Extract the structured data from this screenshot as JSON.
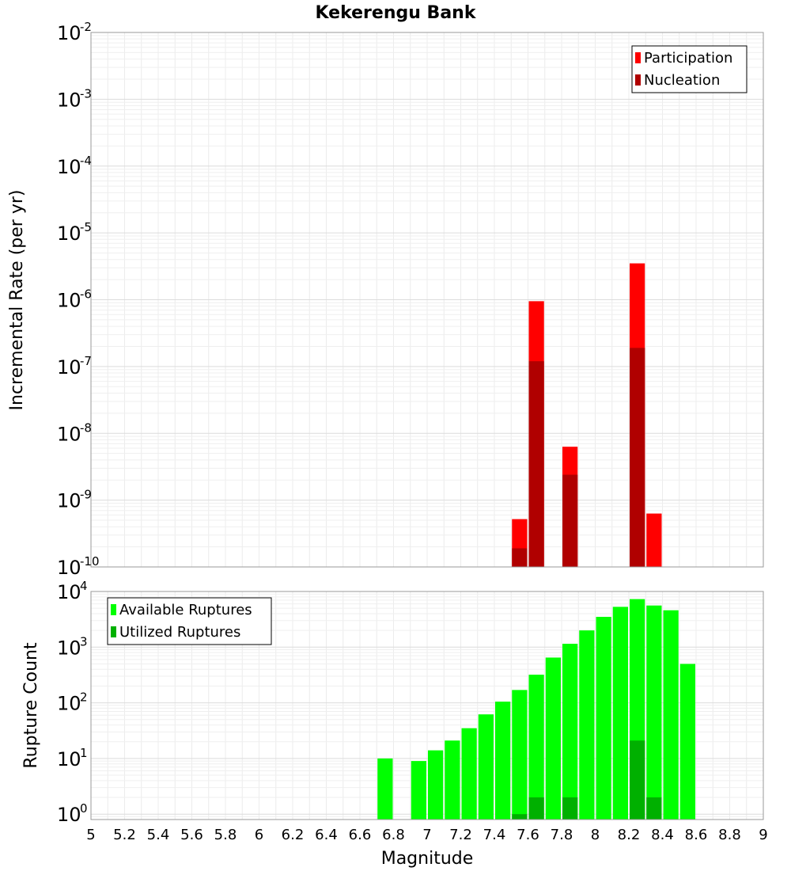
{
  "chart_data": [
    {
      "type": "bar",
      "title": "Kekerengu Bank",
      "ylabel": "Incremental Rate (per yr)",
      "xlabel": "",
      "xlim": [
        5,
        9
      ],
      "ylim": [
        1e-10,
        0.01
      ],
      "yscale": "log",
      "grid": true,
      "legend_position": "top-right",
      "x": [
        7.55,
        7.65,
        7.85,
        8.25,
        8.35
      ],
      "series": [
        {
          "name": "Participation",
          "color": "#ff0000",
          "values": [
            5.2e-10,
            9.5e-07,
            6.3e-09,
            3.5e-06,
            6.3e-10
          ]
        },
        {
          "name": "Nucleation",
          "color": "#b00000",
          "values": [
            1.9e-10,
            1.2e-07,
            2.4e-09,
            1.9e-07,
            null
          ]
        }
      ],
      "ytick_exponents": [
        -10,
        -9,
        -8,
        -7,
        -6,
        -5,
        -4,
        -3,
        -2
      ]
    },
    {
      "type": "bar",
      "title": "",
      "ylabel": "Rupture Count",
      "xlabel": "Magnitude",
      "xlim": [
        5,
        9
      ],
      "ylim": [
        0.8,
        10000
      ],
      "yscale": "log",
      "grid": true,
      "legend_position": "top-left",
      "x": [
        6.75,
        6.95,
        7.05,
        7.15,
        7.25,
        7.35,
        7.45,
        7.55,
        7.65,
        7.75,
        7.85,
        7.95,
        8.05,
        8.15,
        8.25,
        8.35,
        8.45,
        8.55
      ],
      "series": [
        {
          "name": "Available Ruptures",
          "color": "#00ff00",
          "values": [
            10,
            9,
            14,
            21,
            35,
            62,
            105,
            170,
            320,
            650,
            1150,
            2000,
            3500,
            5300,
            7300,
            5600,
            4600,
            500
          ]
        },
        {
          "name": "Utilized Ruptures",
          "color": "#00b000",
          "values": [
            null,
            null,
            null,
            null,
            null,
            null,
            null,
            1,
            2,
            null,
            2,
            null,
            null,
            null,
            21,
            2,
            null,
            null
          ]
        }
      ],
      "ytick_exponents": [
        0,
        1,
        2,
        3,
        4
      ]
    }
  ],
  "x_ticks": [
    "5",
    "5.2",
    "5.4",
    "5.6",
    "5.8",
    "6",
    "6.2",
    "6.4",
    "6.6",
    "6.8",
    "7",
    "7.2",
    "7.4",
    "7.6",
    "7.8",
    "8",
    "8.2",
    "8.4",
    "8.6",
    "8.8",
    "9"
  ],
  "tick_base": "10"
}
